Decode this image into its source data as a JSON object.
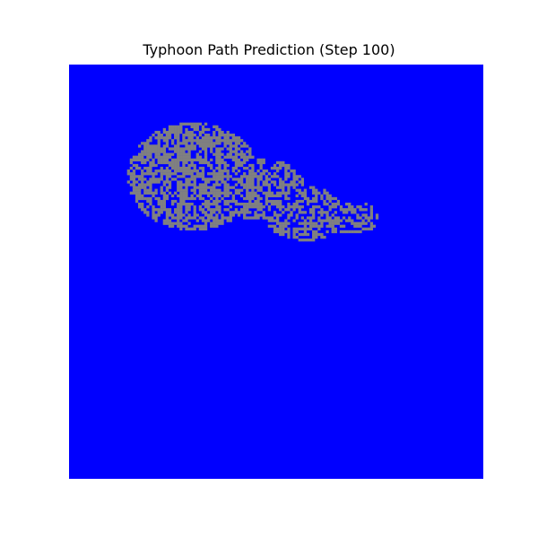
{
  "chart_data": {
    "type": "heatmap",
    "title": "Typhoon Path Prediction (Step 100)",
    "xlabel": "",
    "ylabel": "",
    "grid": false,
    "axes_visible": false,
    "colors": {
      "background": "#0000ff",
      "cloud": "#808080"
    },
    "cloud_region": {
      "description_cells": "irregular speckled gray cloud band on blue field",
      "blobs": [
        {
          "cx": 0.3,
          "cy": 0.27,
          "rx": 0.16,
          "ry": 0.13,
          "density": 0.62
        },
        {
          "cx": 0.46,
          "cy": 0.3,
          "rx": 0.11,
          "ry": 0.075,
          "density": 0.55
        },
        {
          "cx": 0.57,
          "cy": 0.36,
          "rx": 0.1,
          "ry": 0.065,
          "density": 0.55
        },
        {
          "cx": 0.68,
          "cy": 0.37,
          "rx": 0.07,
          "ry": 0.04,
          "density": 0.45
        }
      ],
      "grid_size": 150,
      "seed": 100
    }
  }
}
